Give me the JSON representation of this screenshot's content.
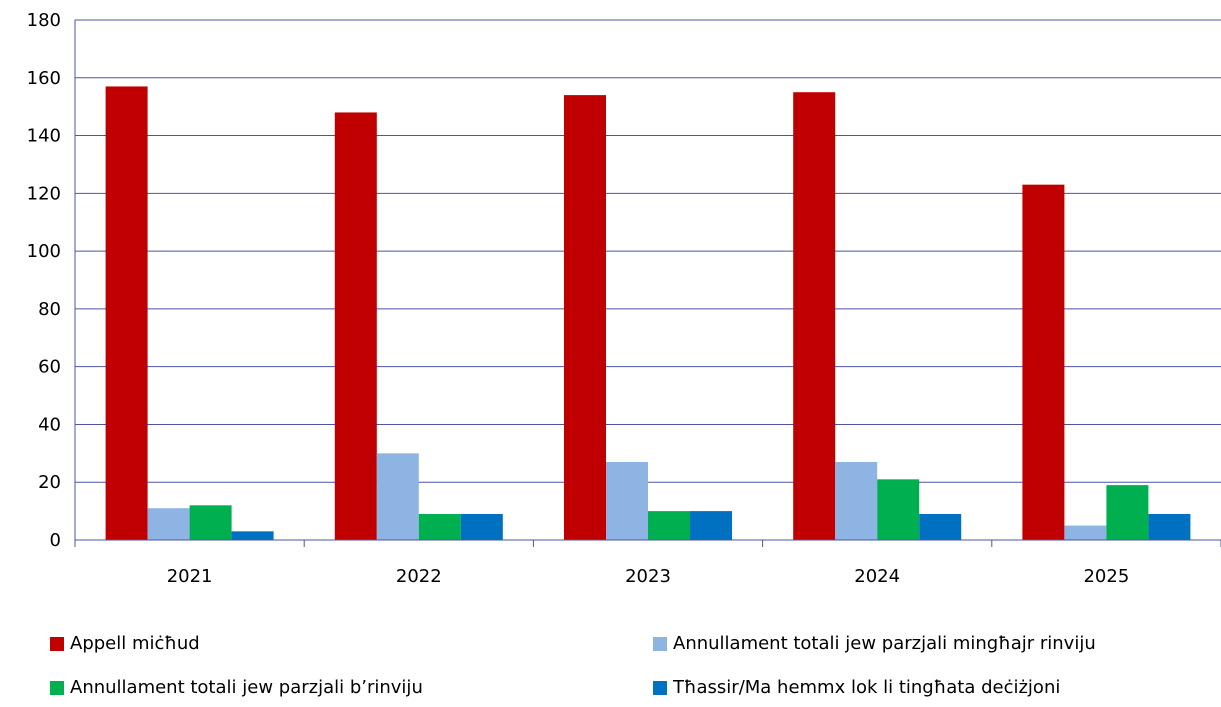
{
  "chart_data": {
    "type": "bar",
    "categories": [
      "2021",
      "2022",
      "2023",
      "2024",
      "2025"
    ],
    "series": [
      {
        "name": "Appell miċħud",
        "color": "#c00000",
        "values": [
          157,
          148,
          154,
          155,
          123
        ]
      },
      {
        "name": "Annullament totali jew parzjali mingħajr rinviju",
        "color": "#8db4e2",
        "values": [
          11,
          30,
          27,
          27,
          5
        ]
      },
      {
        "name": "Annullament totali jew parzjali b’rinviju",
        "color": "#00b050",
        "values": [
          12,
          9,
          10,
          21,
          19
        ]
      },
      {
        "name": "Tħassir/Ma hemmx lok li tingħata deċiżjoni",
        "color": "#0070c0",
        "values": [
          3,
          9,
          10,
          9,
          9
        ]
      }
    ],
    "ylim": [
      0,
      180
    ],
    "yticks": [
      0,
      20,
      40,
      60,
      80,
      100,
      120,
      140,
      160,
      180
    ],
    "grid": true,
    "grid_color": "#4a55a8",
    "legend_position": "bottom"
  }
}
